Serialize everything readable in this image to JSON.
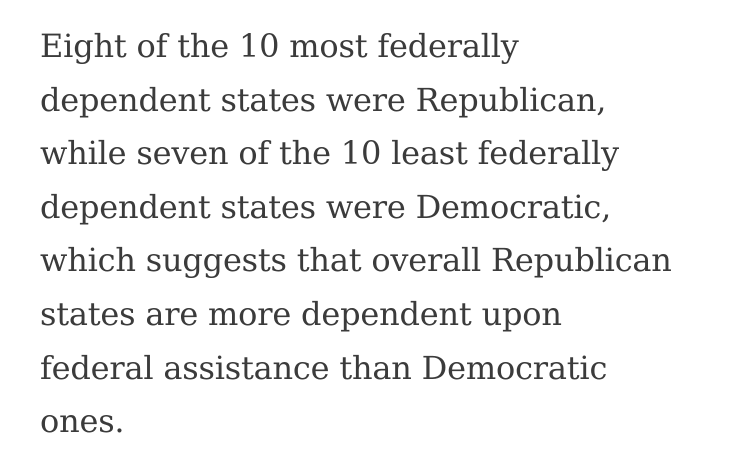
{
  "article": {
    "lines": [
      "Eight of the 10 most federally",
      "dependent states were Republican,",
      "while seven of the 10 least federally",
      "dependent states were Democratic,",
      "which suggests that overall Republican",
      "states are more dependent upon",
      "federal assistance than Democratic",
      "ones."
    ]
  },
  "colors": {
    "text": "#3b3b3b",
    "background": "#ffffff"
  }
}
